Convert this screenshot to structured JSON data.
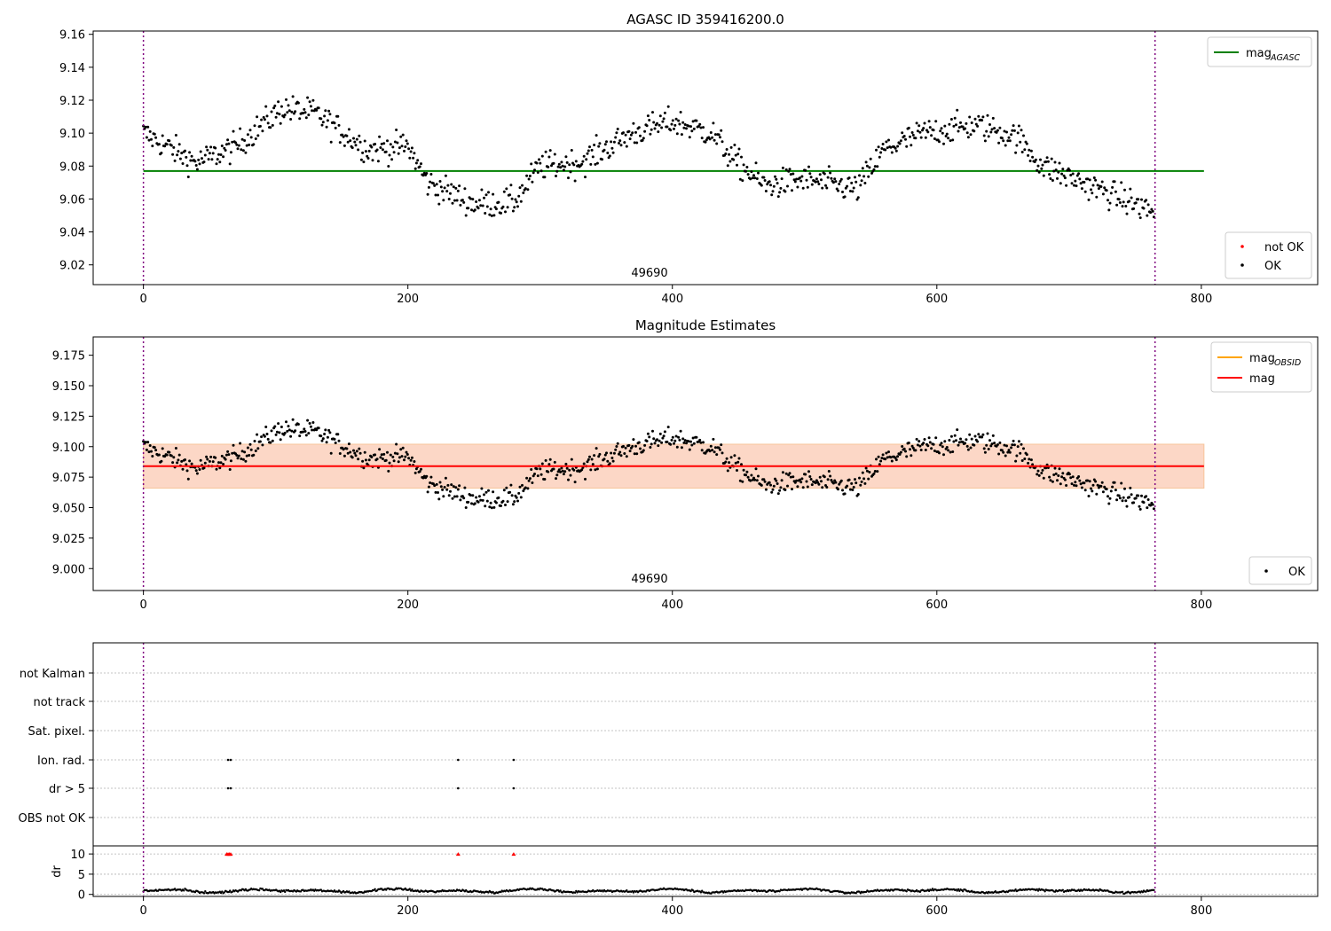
{
  "chart_data": [
    {
      "type": "scatter",
      "title": "AGASC ID 359416200.0",
      "xlim": [
        -38,
        888
      ],
      "ylim": [
        9.008,
        9.162
      ],
      "xticks": [
        0,
        200,
        400,
        600,
        800
      ],
      "yticks": [
        9.02,
        9.04,
        9.06,
        9.08,
        9.1,
        9.12,
        9.14,
        9.16
      ],
      "ytick_labels": [
        "9.02",
        "9.04",
        "9.06",
        "9.08",
        "9.10",
        "9.12",
        "9.14",
        "9.16"
      ],
      "obsid_label": "49690",
      "obsid_label_x": 382,
      "vlines": [
        0,
        765
      ],
      "hline": {
        "name": "mag_AGASC",
        "y": 9.077,
        "x": [
          0,
          802
        ],
        "color": "#008000"
      },
      "legend_lines": [
        {
          "label_base": "mag",
          "label_sub": "AGASC",
          "color": "#008000"
        }
      ],
      "legend_points": [
        {
          "label": "not OK",
          "color": "#ff0000"
        },
        {
          "label": "OK",
          "color": "#000000"
        }
      ],
      "series_points": "OK points, black dots: see series below",
      "series": [
        {
          "name": "OK",
          "color": "#000000",
          "mag_profile": [
            [
              0,
              9.1
            ],
            [
              40,
              9.082
            ],
            [
              70,
              9.092
            ],
            [
              105,
              9.115
            ],
            [
              130,
              9.112
            ],
            [
              170,
              9.09
            ],
            [
              200,
              9.092
            ],
            [
              215,
              9.07
            ],
            [
              250,
              9.057
            ],
            [
              280,
              9.058
            ],
            [
              300,
              9.08
            ],
            [
              330,
              9.082
            ],
            [
              370,
              9.1
            ],
            [
              400,
              9.107
            ],
            [
              430,
              9.1
            ],
            [
              445,
              9.085
            ],
            [
              470,
              9.068
            ],
            [
              500,
              9.072
            ],
            [
              540,
              9.066
            ],
            [
              560,
              9.09
            ],
            [
              590,
              9.1
            ],
            [
              630,
              9.105
            ],
            [
              660,
              9.098
            ],
            [
              680,
              9.08
            ],
            [
              710,
              9.07
            ],
            [
              740,
              9.06
            ],
            [
              765,
              9.052
            ]
          ]
        }
      ]
    },
    {
      "type": "scatter",
      "title": "Magnitude Estimates",
      "xlim": [
        -38,
        888
      ],
      "ylim": [
        8.982,
        9.19
      ],
      "xticks": [
        0,
        200,
        400,
        600,
        800
      ],
      "yticks": [
        9.0,
        9.025,
        9.05,
        9.075,
        9.1,
        9.125,
        9.15,
        9.175
      ],
      "ytick_labels": [
        "9.000",
        "9.025",
        "9.050",
        "9.075",
        "9.100",
        "9.125",
        "9.150",
        "9.175"
      ],
      "obsid_label": "49690",
      "obsid_label_x": 382,
      "vlines": [
        0,
        765
      ],
      "band": {
        "y_low": 9.066,
        "y_high": 9.102,
        "x": [
          0,
          802
        ]
      },
      "hline": {
        "name": "mag",
        "y": 9.084,
        "x": [
          0,
          802
        ],
        "color": "#ff0000"
      },
      "legend_lines": [
        {
          "label_base": "mag",
          "label_sub": "OBSID",
          "color": "#ffa500"
        },
        {
          "label_base": "mag",
          "label_sub": "",
          "color": "#ff0000"
        }
      ],
      "legend_points": [
        {
          "label": "OK",
          "color": "#000000"
        }
      ]
    },
    {
      "type": "scatter",
      "title": "",
      "xlim": [
        -38,
        888
      ],
      "xticks": [
        0,
        200,
        400,
        600,
        800
      ],
      "vlines": [
        0,
        765
      ],
      "flag_rows": [
        "not Kalman",
        "not track",
        "Sat. pixel.",
        "Ion. rad.",
        "dr > 5",
        "OBS not OK"
      ],
      "flag_marks": [
        {
          "row": "Ion. rad.",
          "x": [
            64,
            66,
            238,
            280
          ]
        },
        {
          "row": "dr > 5",
          "x": [
            64,
            66,
            238,
            280
          ]
        }
      ],
      "dr_panel": {
        "ylabel": "dr",
        "ylim": [
          -0.5,
          12
        ],
        "yticks": [
          0,
          5,
          10
        ],
        "ytick_labels": [
          "0",
          "5",
          "10"
        ],
        "red_marks_at_10": [
          63,
          64,
          65,
          66,
          238,
          280
        ]
      }
    }
  ],
  "colors": {
    "vline": "#800080",
    "band_fill_outer": "#ffd9df",
    "band_fill_inner": "#fcd7c6",
    "band_edge": "#f7c49a",
    "grid": "#b0b0b0"
  }
}
